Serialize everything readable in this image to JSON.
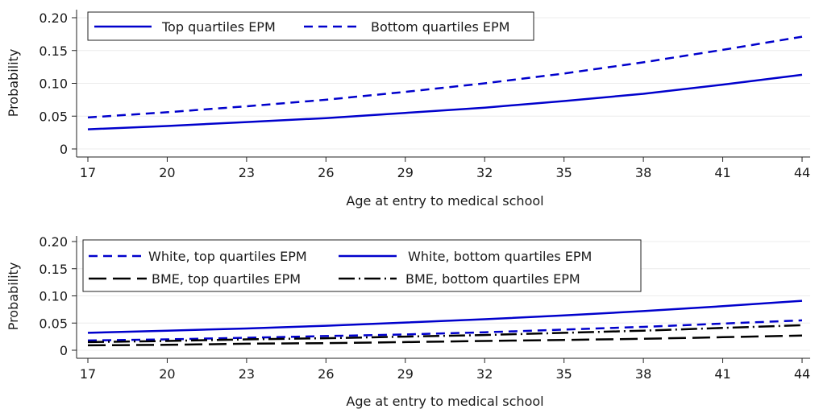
{
  "chart_data": [
    {
      "type": "line",
      "title": "",
      "xlabel": "Age at entry to medical school",
      "ylabel": "Probability",
      "xlim": [
        17,
        44
      ],
      "ylim": [
        0,
        0.2
      ],
      "x_ticks": [
        17,
        20,
        23,
        26,
        29,
        32,
        35,
        38,
        41,
        44
      ],
      "x_tick_labels": [
        "17",
        "20",
        "23",
        "26",
        "29",
        "32",
        "35",
        "38",
        "41",
        "44"
      ],
      "y_ticks": [
        0,
        0.05,
        0.1,
        0.15,
        0.2
      ],
      "y_tick_labels": [
        "0",
        "0.05",
        "0.10",
        "0.15",
        "0.20"
      ],
      "grid": true,
      "legend_placement": "top-left",
      "x": [
        17,
        20,
        23,
        26,
        29,
        32,
        35,
        38,
        41,
        44
      ],
      "series": [
        {
          "name": "Top quartiles EPM",
          "color": "#0000cc",
          "dash": "solid",
          "values": [
            0.03,
            0.035,
            0.041,
            0.047,
            0.055,
            0.063,
            0.073,
            0.084,
            0.098,
            0.113
          ]
        },
        {
          "name": "Bottom quartiles EPM",
          "color": "#0000cc",
          "dash": "dashed",
          "values": [
            0.048,
            0.056,
            0.065,
            0.075,
            0.087,
            0.1,
            0.115,
            0.132,
            0.151,
            0.171
          ]
        }
      ]
    },
    {
      "type": "line",
      "title": "",
      "xlabel": "Age at entry to medical school",
      "ylabel": "Probability",
      "xlim": [
        17,
        44
      ],
      "ylim": [
        0,
        0.2
      ],
      "x_ticks": [
        17,
        20,
        23,
        26,
        29,
        32,
        35,
        38,
        41,
        44
      ],
      "x_tick_labels": [
        "17",
        "20",
        "23",
        "26",
        "29",
        "32",
        "35",
        "38",
        "41",
        "44"
      ],
      "y_ticks": [
        0,
        0.05,
        0.1,
        0.15,
        0.2
      ],
      "y_tick_labels": [
        "0",
        "0.05",
        "0.10",
        "0.15",
        "0.20"
      ],
      "grid": true,
      "legend_placement": "top-left",
      "x": [
        17,
        20,
        23,
        26,
        29,
        32,
        35,
        38,
        41,
        44
      ],
      "series": [
        {
          "name": "White, top quartiles EPM",
          "color": "#0000cc",
          "dash": "dashed",
          "values": [
            0.018,
            0.02,
            0.023,
            0.026,
            0.029,
            0.033,
            0.038,
            0.043,
            0.049,
            0.055
          ]
        },
        {
          "name": "White, bottom quartiles EPM",
          "color": "#0000cc",
          "dash": "solid",
          "values": [
            0.032,
            0.036,
            0.04,
            0.045,
            0.051,
            0.057,
            0.064,
            0.072,
            0.081,
            0.091
          ]
        },
        {
          "name": "BME, top quartiles EPM",
          "color": "#000000",
          "dash": "longdash",
          "values": [
            0.009,
            0.01,
            0.012,
            0.013,
            0.015,
            0.017,
            0.019,
            0.021,
            0.024,
            0.027
          ]
        },
        {
          "name": "BME, bottom quartiles EPM",
          "color": "#000000",
          "dash": "dashdot",
          "values": [
            0.015,
            0.017,
            0.02,
            0.022,
            0.025,
            0.028,
            0.032,
            0.036,
            0.041,
            0.046
          ]
        }
      ]
    }
  ]
}
